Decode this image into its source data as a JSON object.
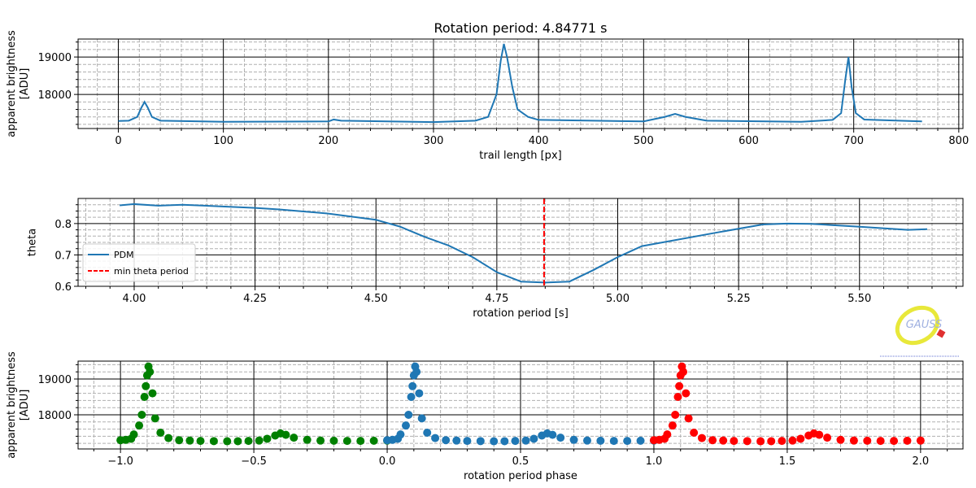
{
  "title": "Rotation period: 4.84771 s",
  "logo_text": "GAUSS",
  "chart_data": [
    {
      "type": "line",
      "xlabel": "trail length [px]",
      "ylabel": [
        "apparent brightness",
        "[ADU]"
      ],
      "xlim": [
        -38.3,
        804
      ],
      "ylim": [
        17090,
        19480
      ],
      "xticks": [
        0,
        100,
        200,
        300,
        400,
        500,
        600,
        700,
        800
      ],
      "yticks": [
        18000,
        19000
      ],
      "xminorticks": [
        -20,
        20,
        40,
        60,
        80,
        120,
        140,
        160,
        180,
        220,
        240,
        260,
        280,
        320,
        340,
        360,
        380,
        420,
        440,
        460,
        480,
        520,
        540,
        560,
        580,
        620,
        640,
        660,
        680,
        720,
        740,
        760,
        780
      ],
      "yminorticks": [
        17200,
        17400,
        17600,
        17800,
        18200,
        18400,
        18600,
        18800,
        19200,
        19400
      ],
      "grid": true,
      "series": [
        {
          "color": "#1f77b4",
          "x": [
            0,
            10,
            18,
            22,
            25,
            28,
            32,
            40,
            100,
            200,
            205,
            212,
            300,
            340,
            352,
            360,
            364,
            367,
            370,
            375,
            380,
            390,
            400,
            500,
            520,
            530,
            540,
            560,
            650,
            680,
            688,
            692,
            695,
            698,
            702,
            710,
            765
          ],
          "y": [
            17290,
            17300,
            17400,
            17650,
            17800,
            17650,
            17400,
            17300,
            17270,
            17280,
            17330,
            17300,
            17260,
            17300,
            17400,
            18000,
            18900,
            19350,
            19000,
            18200,
            17600,
            17400,
            17320,
            17280,
            17400,
            17480,
            17400,
            17300,
            17270,
            17320,
            17500,
            18400,
            19000,
            18200,
            17500,
            17330,
            17280
          ]
        }
      ]
    },
    {
      "type": "line",
      "xlabel": "rotation period [s]",
      "ylabel": [
        "theta"
      ],
      "xlim": [
        3.884,
        5.714
      ],
      "ylim": [
        0.6,
        0.88
      ],
      "xticks": [
        {
          "value": 4.0,
          "label": "4.00"
        },
        4.25,
        {
          "value": 4.5,
          "label": "4.50"
        },
        4.75,
        {
          "value": 5.0,
          "label": "5.00"
        },
        5.25,
        {
          "value": 5.5,
          "label": "5.50"
        }
      ],
      "yticks": [
        0.6,
        0.7,
        0.8
      ],
      "xminorticks": [
        3.9,
        3.95,
        4.05,
        4.1,
        4.15,
        4.2,
        4.3,
        4.35,
        4.4,
        4.45,
        4.55,
        4.6,
        4.65,
        4.7,
        4.8,
        4.85,
        4.9,
        4.95,
        5.05,
        5.1,
        5.15,
        5.2,
        5.3,
        5.35,
        5.4,
        5.45,
        5.55,
        5.6,
        5.65,
        5.7
      ],
      "yminorticks": [
        0.62,
        0.64,
        0.66,
        0.68,
        0.72,
        0.74,
        0.76,
        0.78,
        0.82,
        0.84,
        0.86
      ],
      "grid": true,
      "legend": "lower left",
      "series": [
        {
          "name": "PDM",
          "color": "#1f77b4",
          "x": [
            3.97,
            4.0,
            4.05,
            4.1,
            4.25,
            4.3,
            4.4,
            4.5,
            4.55,
            4.6,
            4.65,
            4.7,
            4.75,
            4.8,
            4.85,
            4.9,
            4.95,
            5.0,
            5.05,
            5.1,
            5.2,
            5.3,
            5.35,
            5.4,
            5.5,
            5.6,
            5.64
          ],
          "y": [
            0.858,
            0.862,
            0.857,
            0.86,
            0.85,
            0.845,
            0.832,
            0.812,
            0.79,
            0.758,
            0.73,
            0.693,
            0.645,
            0.615,
            0.612,
            0.615,
            0.652,
            0.693,
            0.728,
            0.742,
            0.77,
            0.797,
            0.8,
            0.799,
            0.79,
            0.78,
            0.782
          ]
        }
      ],
      "vlines": [
        {
          "name": "min theta period",
          "x": 4.8477,
          "color": "#ff0000"
        }
      ]
    },
    {
      "type": "scatter",
      "xlabel": "rotation period phase",
      "ylabel": [
        "apparent brightness",
        "[ADU]"
      ],
      "xlim": [
        -1.159,
        2.159
      ],
      "ylim": [
        17045,
        19500
      ],
      "xticks": [
        {
          "value": -1.0,
          "label": "−1.0"
        },
        {
          "value": -0.5,
          "label": "−0.5"
        },
        {
          "value": 0.0,
          "label": "0.0"
        },
        0.5,
        {
          "value": 1.0,
          "label": "1.0"
        },
        1.5,
        {
          "value": 2.0,
          "label": "2.0"
        }
      ],
      "yticks": [
        18000,
        19000
      ],
      "xminorticks": [
        -1.1,
        -0.9,
        -0.8,
        -0.7,
        -0.6,
        -0.4,
        -0.3,
        -0.2,
        -0.1,
        0.1,
        0.2,
        0.3,
        0.4,
        0.6,
        0.7,
        0.8,
        0.9,
        1.1,
        1.2,
        1.3,
        1.4,
        1.6,
        1.7,
        1.8,
        1.9,
        2.1
      ],
      "yminorticks": [
        17200,
        17400,
        17600,
        17800,
        18200,
        18400,
        18600,
        18800,
        19200,
        19400
      ],
      "grid": true,
      "series": [
        {
          "color": "#008000",
          "x": [
            -1.0,
            -0.98,
            -0.96,
            -0.95,
            -0.93,
            -0.92,
            -0.91,
            -0.905,
            -0.9,
            -0.895,
            -0.89,
            -0.88,
            -0.87,
            -0.85,
            -0.82,
            -0.78,
            -0.74,
            -0.7,
            -0.65,
            -0.6,
            -0.56,
            -0.52,
            -0.48,
            -0.45,
            -0.42,
            -0.4,
            -0.38,
            -0.35,
            -0.3,
            -0.25,
            -0.2,
            -0.15,
            -0.1,
            -0.05,
            0.0
          ],
          "y": [
            17290,
            17300,
            17330,
            17450,
            17700,
            18000,
            18500,
            18800,
            19100,
            19350,
            19200,
            18600,
            17900,
            17500,
            17350,
            17290,
            17280,
            17270,
            17265,
            17260,
            17262,
            17270,
            17280,
            17330,
            17420,
            17480,
            17440,
            17360,
            17300,
            17280,
            17275,
            17270,
            17270,
            17275,
            17280
          ]
        },
        {
          "color": "#1f77b4",
          "x": [
            0.0,
            0.02,
            0.04,
            0.05,
            0.07,
            0.08,
            0.09,
            0.095,
            0.1,
            0.105,
            0.11,
            0.12,
            0.13,
            0.15,
            0.18,
            0.22,
            0.26,
            0.3,
            0.35,
            0.4,
            0.44,
            0.48,
            0.52,
            0.55,
            0.58,
            0.6,
            0.62,
            0.65,
            0.7,
            0.75,
            0.8,
            0.85,
            0.9,
            0.95,
            1.0
          ],
          "y": [
            17290,
            17300,
            17330,
            17450,
            17700,
            18000,
            18500,
            18800,
            19100,
            19350,
            19200,
            18600,
            17900,
            17500,
            17350,
            17290,
            17280,
            17270,
            17265,
            17260,
            17262,
            17270,
            17280,
            17330,
            17420,
            17480,
            17440,
            17360,
            17300,
            17280,
            17275,
            17270,
            17270,
            17275,
            17280
          ]
        },
        {
          "color": "#ff0000",
          "x": [
            1.0,
            1.02,
            1.04,
            1.05,
            1.07,
            1.08,
            1.09,
            1.095,
            1.1,
            1.105,
            1.11,
            1.12,
            1.13,
            1.15,
            1.18,
            1.22,
            1.26,
            1.3,
            1.35,
            1.4,
            1.44,
            1.48,
            1.52,
            1.55,
            1.58,
            1.6,
            1.62,
            1.65,
            1.7,
            1.75,
            1.8,
            1.85,
            1.9,
            1.95,
            2.0
          ],
          "y": [
            17290,
            17300,
            17330,
            17450,
            17700,
            18000,
            18500,
            18800,
            19100,
            19350,
            19200,
            18600,
            17900,
            17500,
            17350,
            17290,
            17280,
            17270,
            17265,
            17260,
            17262,
            17270,
            17280,
            17330,
            17420,
            17480,
            17440,
            17360,
            17300,
            17280,
            17275,
            17270,
            17270,
            17275,
            17280
          ]
        }
      ]
    }
  ]
}
